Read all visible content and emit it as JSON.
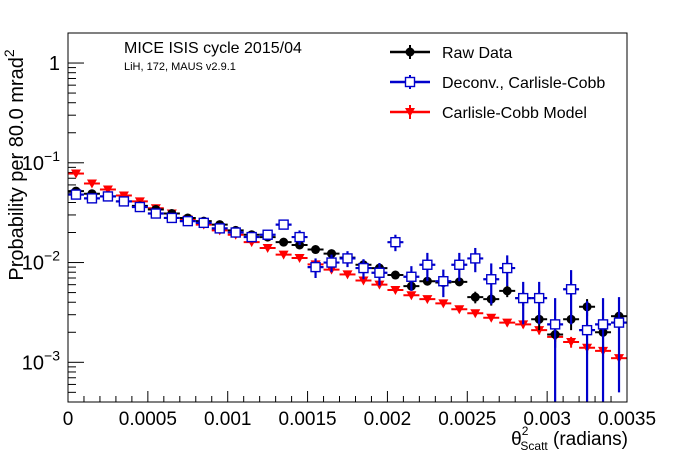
{
  "chart_data": {
    "type": "scatter",
    "title": "MICE ISIS cycle 2015/04",
    "subtitle": "LiH, 172, MAUS v2.9.1",
    "ylabel": "Probability per 80.0 mrad",
    "ylabel_sup": "2",
    "xlabel_pre": "θ",
    "xlabel_sup": "2",
    "xlabel_sub": "Scatt",
    "xlabel_post": " (radians)",
    "xlim": [
      0,
      0.0035
    ],
    "ylim": [
      0.0004,
      2.0
    ],
    "y_scale": "log",
    "x_ticks": [
      {
        "v": 0,
        "label": "0"
      },
      {
        "v": 0.0005,
        "label": "0.0005"
      },
      {
        "v": 0.001,
        "label": "0.001"
      },
      {
        "v": 0.0015,
        "label": "0.0015"
      },
      {
        "v": 0.002,
        "label": "0.002"
      },
      {
        "v": 0.0025,
        "label": "0.0025"
      },
      {
        "v": 0.003,
        "label": "0.003"
      },
      {
        "v": 0.0035,
        "label": "0.0035"
      }
    ],
    "y_ticks": [
      {
        "v": 1,
        "base": "1",
        "exp": ""
      },
      {
        "v": 0.1,
        "base": "10",
        "exp": "−1"
      },
      {
        "v": 0.01,
        "base": "10",
        "exp": "−2"
      },
      {
        "v": 0.001,
        "base": "10",
        "exp": "−3"
      }
    ],
    "legend_position": "top-right",
    "series": [
      {
        "name": "Raw Data",
        "color": "#000000",
        "marker": "filled-circle",
        "x": [
          5e-05,
          0.00015,
          0.00025,
          0.00035,
          0.00045,
          0.00055,
          0.00065,
          0.00075,
          0.00085,
          0.00095,
          0.00105,
          0.00115,
          0.00125,
          0.00135,
          0.00145,
          0.00155,
          0.00165,
          0.00175,
          0.00185,
          0.00195,
          0.00205,
          0.00215,
          0.00225,
          0.00235,
          0.00245,
          0.00255,
          0.00265,
          0.00275,
          0.00285,
          0.00295,
          0.00305,
          0.00315,
          0.00325,
          0.00335,
          0.00345
        ],
        "y": [
          0.052,
          0.049,
          0.046,
          0.041,
          0.037,
          0.034,
          0.031,
          0.028,
          0.026,
          0.024,
          0.021,
          0.019,
          0.018,
          0.016,
          0.015,
          0.0135,
          0.0123,
          0.0112,
          0.0095,
          0.0088,
          0.0075,
          0.0058,
          0.0065,
          0.0063,
          0.0064,
          0.0045,
          0.0043,
          0.0052,
          0.0044,
          0.0027,
          0.0019,
          0.0027,
          0.0036,
          0.002,
          0.0029
        ],
        "err": [
          0.0015,
          0.0014,
          0.0013,
          0.0012,
          0.0011,
          0.001,
          0.001,
          0.0009,
          0.0009,
          0.0008,
          0.0008,
          0.0007,
          0.0007,
          0.0007,
          0.0006,
          0.0006,
          0.0006,
          0.0006,
          0.0006,
          0.0006,
          0.0006,
          0.0005,
          0.0006,
          0.0006,
          0.0006,
          0.0006,
          0.0006,
          0.0007,
          0.0007,
          0.0006,
          0.0005,
          0.0006,
          0.0007,
          0.0006,
          0.0008
        ]
      },
      {
        "name": "Deconv., Carlisle-Cobb",
        "color": "#0000cc",
        "marker": "open-square",
        "x": [
          5e-05,
          0.00015,
          0.00025,
          0.00035,
          0.00045,
          0.00055,
          0.00065,
          0.00075,
          0.00085,
          0.00095,
          0.00105,
          0.00115,
          0.00125,
          0.00135,
          0.00145,
          0.00155,
          0.00165,
          0.00175,
          0.00185,
          0.00195,
          0.00205,
          0.00215,
          0.00225,
          0.00235,
          0.00245,
          0.00255,
          0.00265,
          0.00275,
          0.00285,
          0.00295,
          0.00305,
          0.00315,
          0.00325,
          0.00335,
          0.00345
        ],
        "y": [
          0.048,
          0.044,
          0.046,
          0.041,
          0.036,
          0.031,
          0.028,
          0.026,
          0.025,
          0.022,
          0.02,
          0.018,
          0.019,
          0.024,
          0.018,
          0.009,
          0.01,
          0.011,
          0.0088,
          0.0079,
          0.016,
          0.0072,
          0.0095,
          0.0065,
          0.0095,
          0.011,
          0.0068,
          0.0088,
          0.0044,
          0.0044,
          0.0024,
          0.0054,
          0.0021,
          0.0024,
          0.0025
        ],
        "err": [
          0.003,
          0.003,
          0.003,
          0.003,
          0.003,
          0.002,
          0.002,
          0.002,
          0.002,
          0.002,
          0.002,
          0.002,
          0.002,
          0.002,
          0.003,
          0.002,
          0.002,
          0.002,
          0.002,
          0.002,
          0.003,
          0.002,
          0.003,
          0.002,
          0.003,
          0.003,
          0.003,
          0.003,
          0.002,
          0.002,
          0.002,
          0.003,
          0.002,
          0.002,
          0.002
        ]
      },
      {
        "name": "Carlisle-Cobb Model",
        "color": "#ff0000",
        "marker": "filled-triangle-down",
        "x": [
          5e-05,
          0.00015,
          0.00025,
          0.00035,
          0.00045,
          0.00055,
          0.00065,
          0.00075,
          0.00085,
          0.00095,
          0.00105,
          0.00115,
          0.00125,
          0.00135,
          0.00145,
          0.00155,
          0.00165,
          0.00175,
          0.00185,
          0.00195,
          0.00205,
          0.00215,
          0.00225,
          0.00235,
          0.00245,
          0.00255,
          0.00265,
          0.00275,
          0.00285,
          0.00295,
          0.00305,
          0.00315,
          0.00325,
          0.00335,
          0.00345
        ],
        "y": [
          0.078,
          0.062,
          0.054,
          0.047,
          0.041,
          0.035,
          0.031,
          0.027,
          0.024,
          0.021,
          0.019,
          0.016,
          0.014,
          0.012,
          0.0111,
          0.0096,
          0.0085,
          0.0076,
          0.0066,
          0.006,
          0.0053,
          0.0047,
          0.0043,
          0.0039,
          0.0034,
          0.0031,
          0.0028,
          0.0025,
          0.0024,
          0.0021,
          0.0018,
          0.0016,
          0.0014,
          0.0013,
          0.0011
        ],
        "err": [
          0.002,
          0.0015,
          0.0013,
          0.0011,
          0.001,
          0.0009,
          0.0008,
          0.0007,
          0.0006,
          0.0006,
          0.0005,
          0.0005,
          0.0004,
          0.0004,
          0.0004,
          0.0003,
          0.0003,
          0.0003,
          0.0003,
          0.0002,
          0.0002,
          0.0002,
          0.0002,
          0.0002,
          0.0002,
          0.0002,
          0.0002,
          0.0002,
          0.0002,
          0.0002,
          0.0002,
          0.0002,
          0.0002,
          0.0002,
          0.0002
        ]
      }
    ]
  }
}
